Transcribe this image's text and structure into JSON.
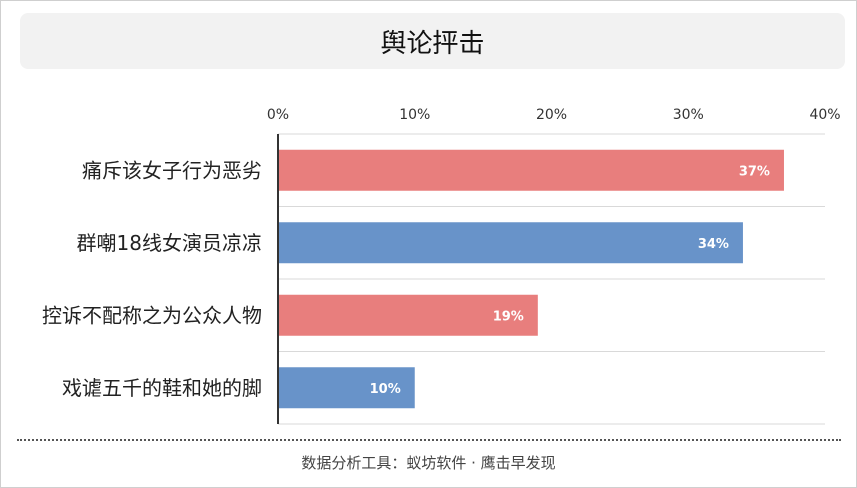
{
  "title": "舆论抨击",
  "footer": "数据分析工具：蚁坊软件 · 鹰击早发现",
  "colors": {
    "red": "#e87e7d",
    "blue": "#6893c9"
  },
  "chart_data": {
    "type": "bar",
    "orientation": "horizontal",
    "title": "舆论抨击",
    "categories": [
      "痛斥该女子行为恶劣",
      "群嘲18线女演员凉凉",
      "控诉不配称之为公众人物",
      "戏谑五千的鞋和她的脚"
    ],
    "values": [
      37,
      34,
      19,
      10
    ],
    "value_labels": [
      "37%",
      "34%",
      "19%",
      "10%"
    ],
    "bar_colors": [
      "#e87e7d",
      "#6893c9",
      "#e87e7d",
      "#6893c9"
    ],
    "xlim": [
      0,
      40
    ],
    "xticks": [
      "0%",
      "10%",
      "20%",
      "30%",
      "40%"
    ],
    "xlabel": "",
    "ylabel": "",
    "grid": true,
    "x_axis_position": "top"
  }
}
